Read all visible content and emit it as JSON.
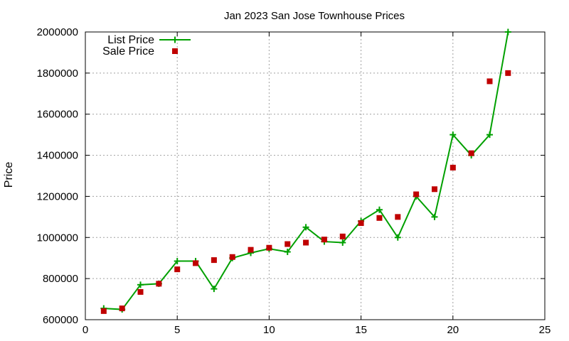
{
  "chart_data": {
    "type": "line",
    "title": "Jan 2023 San Jose Townhouse Prices",
    "xlabel": "",
    "ylabel": "Price",
    "xlim": [
      0,
      25
    ],
    "ylim": [
      600000,
      2000000
    ],
    "x_ticks": [
      0,
      5,
      10,
      15,
      20,
      25
    ],
    "y_ticks": [
      600000,
      800000,
      1000000,
      1200000,
      1400000,
      1600000,
      1800000,
      2000000
    ],
    "grid": true,
    "legend_position": "top-left",
    "x": [
      1,
      2,
      3,
      4,
      5,
      6,
      7,
      8,
      9,
      10,
      11,
      12,
      13,
      14,
      15,
      16,
      17,
      18,
      19,
      20,
      21,
      22,
      23
    ],
    "series": [
      {
        "name": "List Price",
        "style": "lines+points",
        "color": "#00a000",
        "values": [
          655000,
          650000,
          770000,
          775000,
          885000,
          885000,
          750000,
          900000,
          925000,
          945000,
          930000,
          1050000,
          980000,
          975000,
          1080000,
          1135000,
          1000000,
          1200000,
          1100000,
          1500000,
          1400000,
          1500000,
          2000000
        ]
      },
      {
        "name": "Sale Price",
        "style": "points",
        "color": "#c00000",
        "values": [
          642000,
          655000,
          735000,
          775000,
          845000,
          875000,
          890000,
          905000,
          940000,
          950000,
          968000,
          975000,
          990000,
          1005000,
          1070000,
          1095000,
          1100000,
          1210000,
          1235000,
          1340000,
          1410000,
          1760000,
          1800000
        ]
      }
    ]
  }
}
